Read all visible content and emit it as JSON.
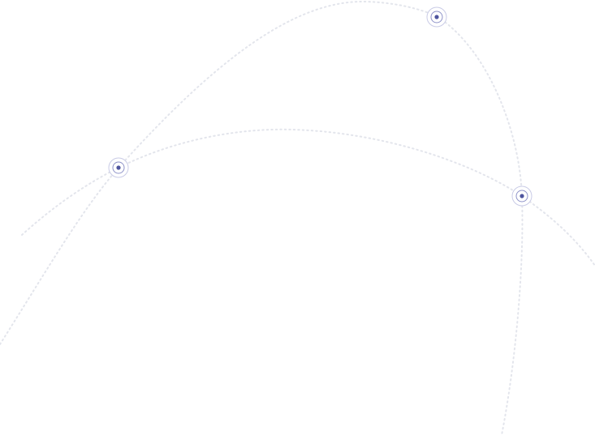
{
  "colors": {
    "background": "#ffffff",
    "route": "#e3e5ec",
    "marker": "#4f559e",
    "marker_ring": "#b9bcdf"
  },
  "icons": [
    "location-marker-icon"
  ],
  "markers": [
    {
      "name": "marker-left"
    },
    {
      "name": "marker-top"
    },
    {
      "name": "marker-right"
    }
  ]
}
